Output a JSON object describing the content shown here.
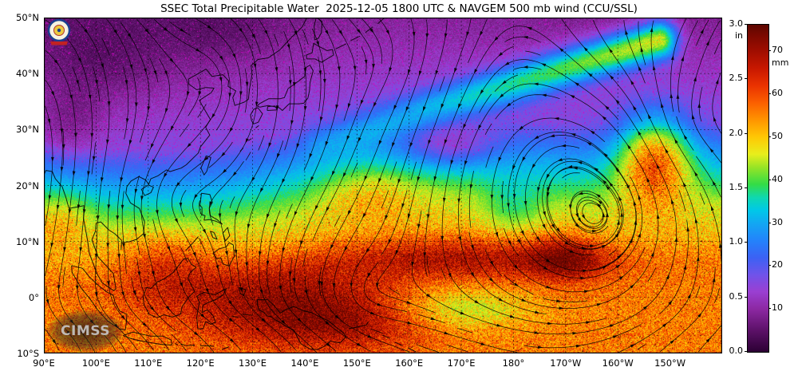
{
  "title": "SSEC Total Precipitable Water  2025-12-05 1800 UTC & NAVGEM 500 mb wind (CCU/SSL)",
  "watermark": "CIMSS",
  "axes": {
    "x_tick_labels": [
      "90°E",
      "100°E",
      "110°E",
      "120°E",
      "130°E",
      "140°E",
      "150°E",
      "160°E",
      "170°E",
      "180°",
      "170°W",
      "160°W",
      "150°W"
    ],
    "y_tick_labels": [
      "50°N",
      "40°N",
      "30°N",
      "20°N",
      "10°N",
      "0°",
      "10°S"
    ]
  },
  "colorbar": {
    "in_unit": "in",
    "mm_unit": "mm",
    "in_ticks": [
      "3.0",
      "2.5",
      "2.0",
      "1.5",
      "1.0",
      "0.5",
      "0.0"
    ],
    "mm_ticks": [
      "70",
      "60",
      "50",
      "40",
      "30",
      "20",
      "10"
    ],
    "max_in": 3.0,
    "mm_per_in": 25.4,
    "colormap_mm_stops": [
      [
        0,
        "#2c0034"
      ],
      [
        5,
        "#5c1168"
      ],
      [
        10,
        "#8c28a2"
      ],
      [
        14,
        "#9a3fd2"
      ],
      [
        18,
        "#6f53ea"
      ],
      [
        22,
        "#3b62f4"
      ],
      [
        26,
        "#2383fb"
      ],
      [
        30,
        "#12a8f2"
      ],
      [
        33,
        "#00c8e8"
      ],
      [
        36,
        "#0fd8b0"
      ],
      [
        39,
        "#33dc46"
      ],
      [
        43,
        "#97e426"
      ],
      [
        46,
        "#e8ee1c"
      ],
      [
        50,
        "#ffc804"
      ],
      [
        54,
        "#ff9400"
      ],
      [
        58,
        "#fb6000"
      ],
      [
        62,
        "#ea3200"
      ],
      [
        66,
        "#c81800"
      ],
      [
        70,
        "#a00d00"
      ],
      [
        74,
        "#780800"
      ],
      [
        78,
        "#5c0600"
      ]
    ]
  },
  "chart_data": {
    "type": "heatmap",
    "field": "Total Precipitable Water",
    "source": "SSEC",
    "valid_time": "2025-12-05 1800 UTC",
    "wind_overlay": "NAVGEM 500 mb wind",
    "credit": "CCU/SSL",
    "lon_range": [
      "90°E",
      "150°W"
    ],
    "lat_range": [
      "10°S",
      "50°N"
    ],
    "grid_interval_deg": 10,
    "scale_in": [
      0.0,
      3.0
    ],
    "scale_mm": [
      0,
      76
    ]
  }
}
